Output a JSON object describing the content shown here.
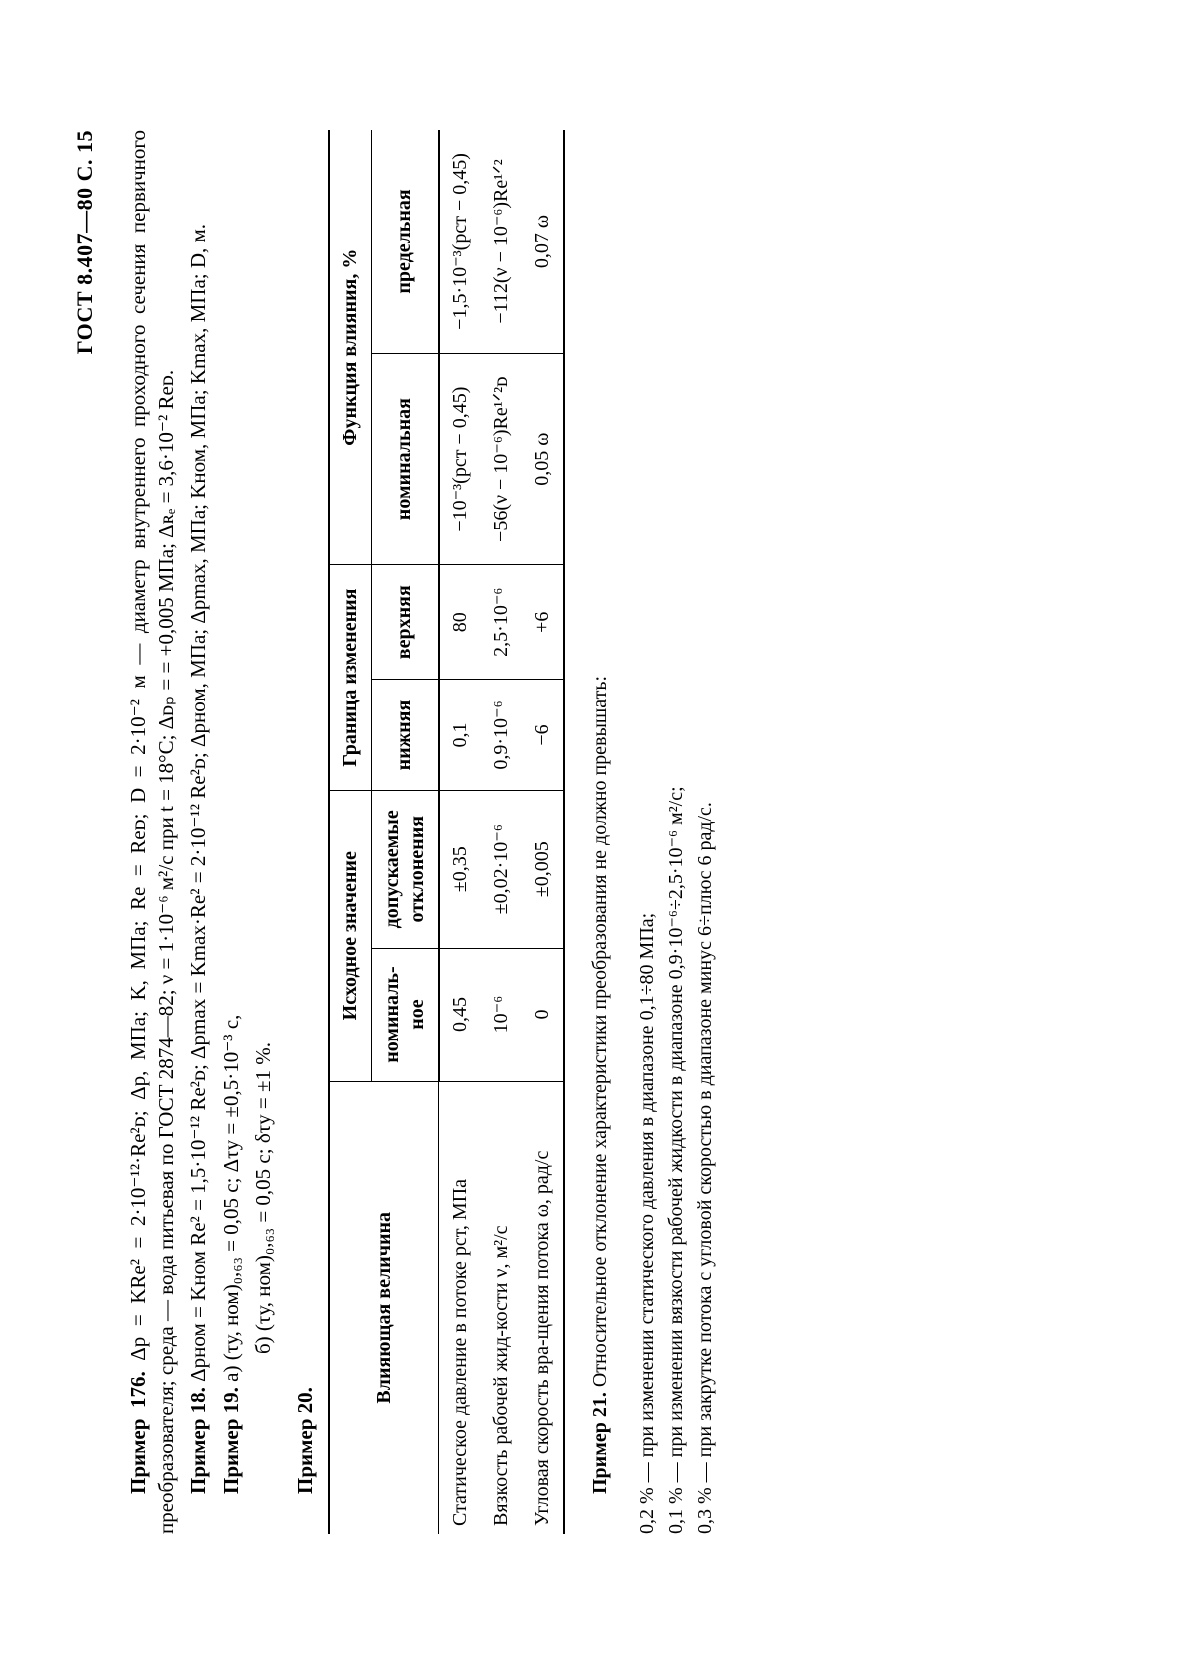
{
  "page_header": "ГОСТ 8.407—80 С. 15",
  "p176_label": "Пример 176.",
  "p176_text": " Δp = KRe² = 2·10⁻¹²·Re²ᴅ; Δp, МПа; K, МПа; Re = Reᴅ; D = 2·10⁻² м — диаметр внутреннего проходного сечения первичного преобразователя; среда — вода питьевая по ГОСТ 2874—82; ν = 1·10⁻⁶ м²/с при t = 18°С; Δᴅₚ = = +0,005 МПа; Δʀₑ = 3,6·10⁻² Reᴅ.",
  "p18_label": "Пример 18.",
  "p18_text": " Δpном = Kном Re² = 1,5·10⁻¹² Re²ᴅ; Δpmax = Kmax·Re² = 2·10⁻¹² Re²ᴅ; Δpном, МПа; Δpmax, МПа; Kном, МПа; Kmax, МПа; D, м.",
  "p19_label": "Пример 19.",
  "p19_a": " а) (τу, ном)₀,₆₃ = 0,05 с; Δτу = ±0,5·10⁻³ с,",
  "p19_b": "б) (τу, ном)₀,₆₃ = 0,05 с; δτу = ±1 %.",
  "p20_label": "Пример 20.",
  "table": {
    "h_param": "Влияющая величина",
    "h_initial": "Исходное значение",
    "h_limits": "Граница изменения",
    "h_influence": "Функция влияния, %",
    "h_nominal": "номиналь-\nное",
    "h_tol": "допускаемые\nотклонения",
    "h_low": "нижняя",
    "h_high": "верхняя",
    "h_fnom": "номинальная",
    "h_flim": "предельная",
    "r1": {
      "param": "Статическое давление в потоке pст, МПа",
      "nom": "0,45",
      "tol": "±0,35",
      "low": "0,1",
      "high": "80",
      "fnom": "−10⁻³(pст − 0,45)",
      "flim": "−1,5·10⁻³(pст − 0,45)"
    },
    "r2": {
      "param": "Вязкость рабочей жид-кости ν, м²/с",
      "nom": "10⁻⁶",
      "tol": "±0,02·10⁻⁶",
      "low": "0,9·10⁻⁶",
      "high": "2,5·10⁻⁶",
      "fnom": "−56(ν − 10⁻⁶)Re¹ᐟ²ᴅ",
      "flim": "−112(ν − 10⁻⁶)Re¹ᐟ²"
    },
    "r3": {
      "param": "Угловая скорость вра-щения потока ω, рад/с",
      "nom": "0",
      "tol": "±0,005",
      "low": "−6",
      "high": "+6",
      "fnom": "0,05 ω",
      "flim": "0,07 ω"
    }
  },
  "p21_label": "Пример 21.",
  "p21_lead": " Относительное отклонение характеристики преобразования не должно превышать:",
  "p21_l1": "0,2 % — при изменении статического давления в диапазоне 0,1÷80 МПа;",
  "p21_l2": "0,1 % — при изменении вязкости рабочей жидкости в диапазоне 0,9·10⁻⁶÷2,5·10⁻⁶ м²/с;",
  "p21_l3": "0,3 % — при закрутке потока с угловой скоростью в диапазоне минус 6÷плюс 6 рад/с."
}
